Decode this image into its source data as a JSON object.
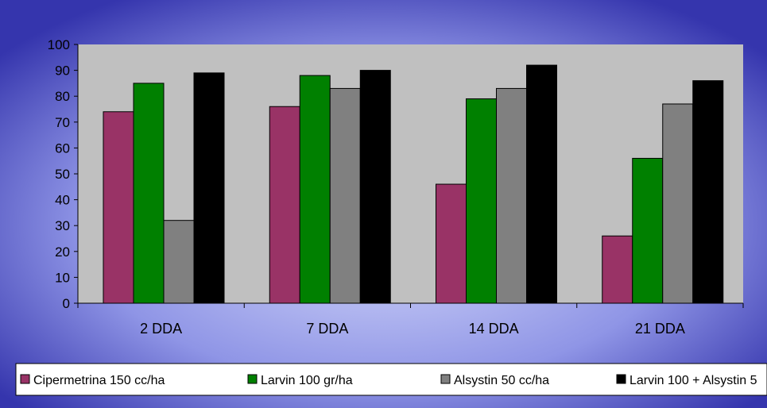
{
  "chart_data": {
    "type": "bar",
    "categories": [
      "2 DDA",
      "7 DDA",
      "14 DDA",
      "21 DDA"
    ],
    "series": [
      {
        "name": "Cipermetrina 150 cc/ha",
        "color": "#993366",
        "values": [
          74,
          76,
          46,
          26
        ]
      },
      {
        "name": "Larvin 100 gr/ha",
        "color": "#008000",
        "values": [
          85,
          88,
          79,
          56
        ]
      },
      {
        "name": "Alsystin 50 cc/ha",
        "color": "#808080",
        "values": [
          32,
          83,
          83,
          77
        ]
      },
      {
        "name": "Larvin 100 + Alsystin 5",
        "color": "#000000",
        "values": [
          89,
          90,
          92,
          86
        ]
      }
    ],
    "yticks": [
      0,
      10,
      20,
      30,
      40,
      50,
      60,
      70,
      80,
      90,
      100
    ],
    "ylim": [
      0,
      100
    ],
    "grid": false,
    "legend_position": "bottom",
    "title": "",
    "xlabel": "",
    "ylabel": ""
  },
  "colors": {
    "background_edge": "#3333aa",
    "background_center": "#ccd0f8",
    "plot_area": "#c0c0c0",
    "legend_box": "#ffffff"
  }
}
